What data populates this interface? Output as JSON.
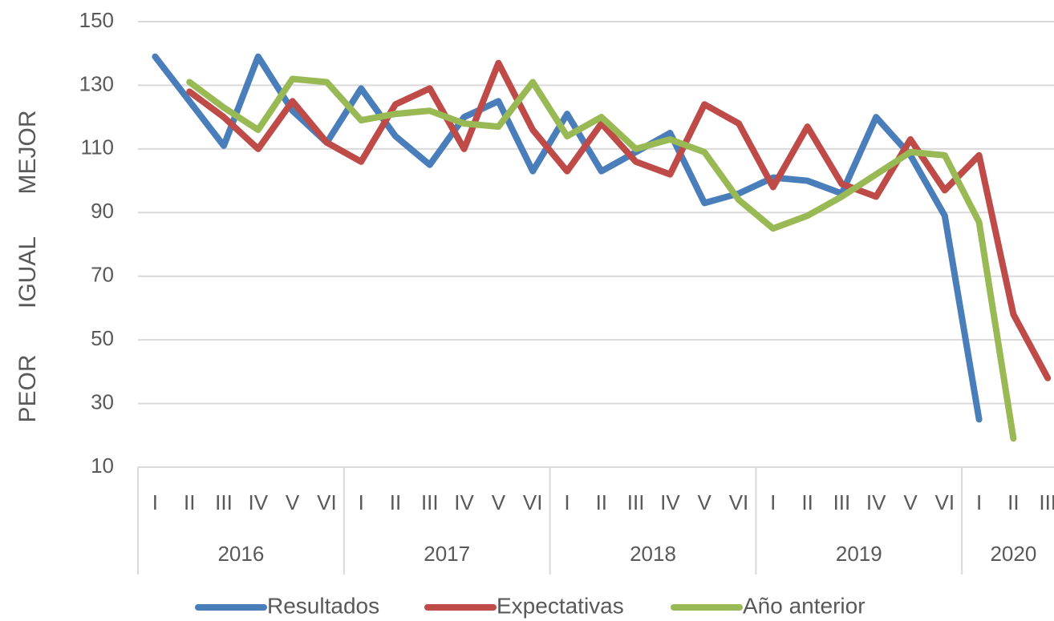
{
  "chart_data": {
    "type": "line",
    "ylabel": [
      "PEOR",
      "IGUAL",
      "MEJOR"
    ],
    "categories": [
      "I",
      "II",
      "III",
      "IV",
      "V",
      "VI",
      "I",
      "II",
      "III",
      "IV",
      "V",
      "VI",
      "I",
      "II",
      "III",
      "IV",
      "V",
      "VI",
      "I",
      "II",
      "III",
      "IV",
      "V",
      "VI",
      "I",
      "II",
      "III"
    ],
    "groups": [
      {
        "name": "2016",
        "size": 6
      },
      {
        "name": "2017",
        "size": 6
      },
      {
        "name": "2018",
        "size": 6
      },
      {
        "name": "2019",
        "size": 6
      },
      {
        "name": "2020",
        "size": 3
      }
    ],
    "series": [
      {
        "name": "Resultados",
        "color": "#4a7ebb",
        "values": [
          139,
          125,
          111,
          139,
          122,
          112,
          129,
          114,
          105,
          120,
          125,
          103,
          121,
          103,
          109,
          115,
          93,
          96,
          101,
          100,
          96,
          120,
          108,
          89,
          25,
          null,
          null
        ]
      },
      {
        "name": "Expectativas",
        "color": "#be4b48",
        "values": [
          null,
          128,
          120,
          110,
          125,
          112,
          106,
          124,
          129,
          110,
          137,
          116,
          103,
          118,
          106,
          102,
          124,
          118,
          98,
          117,
          99,
          95,
          113,
          97,
          108,
          58,
          38
        ]
      },
      {
        "name": "Año anterior",
        "color": "#98b954",
        "values": [
          null,
          131,
          123,
          116,
          132,
          131,
          119,
          121,
          122,
          118,
          117,
          131,
          114,
          120,
          110,
          113,
          109,
          94,
          85,
          89,
          95,
          102,
          109,
          108,
          87,
          19,
          null
        ]
      }
    ],
    "ylim": [
      10,
      150
    ],
    "yticks": [
      10,
      30,
      50,
      70,
      90,
      110,
      130,
      150
    ],
    "grid": true,
    "legend": "bottom"
  }
}
